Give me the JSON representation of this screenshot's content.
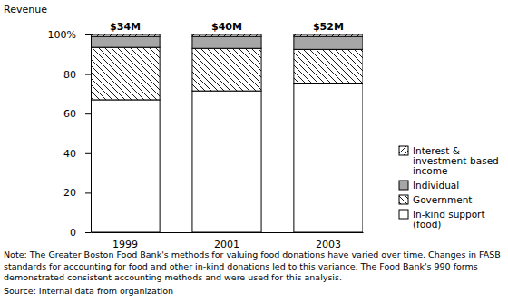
{
  "chart_data": {
    "type": "bar",
    "stacked": true,
    "y_label": "Revenue",
    "categories": [
      "1999",
      "2001",
      "2003"
    ],
    "series": [
      {
        "name": "In-kind support (food)",
        "color": "#ffffff",
        "values": [
          67,
          71.5,
          75
        ]
      },
      {
        "name": "Government",
        "color": "#ffffff",
        "values": [
          26.5,
          21.5,
          17.5
        ]
      },
      {
        "name": "Individual",
        "color": "#a6a6a6",
        "values": [
          5.5,
          6,
          6.5
        ]
      },
      {
        "name": "Interest & investment-based income",
        "color": "#ffffff",
        "values": [
          1,
          1,
          1
        ]
      }
    ],
    "ylim": [
      0,
      100
    ],
    "yticks": [
      0,
      20,
      40,
      60,
      80,
      {
        "value": 100,
        "label": "100%"
      }
    ],
    "grid": false,
    "legend": "right",
    "totals": [
      34,
      40,
      52
    ],
    "total_labels": [
      "$34M",
      "$40M",
      "$52M"
    ],
    "note": "Note: The Greater Boston Food Bank's methods for valuing food donations have varied over time. Changes in FASB standards for accounting for food and other in-kind donations led to this variance. The Food Bank's 990 forms demonstrated consistent accounting methods and were used for this analysis.",
    "source": "Source: Internal data from organization"
  }
}
